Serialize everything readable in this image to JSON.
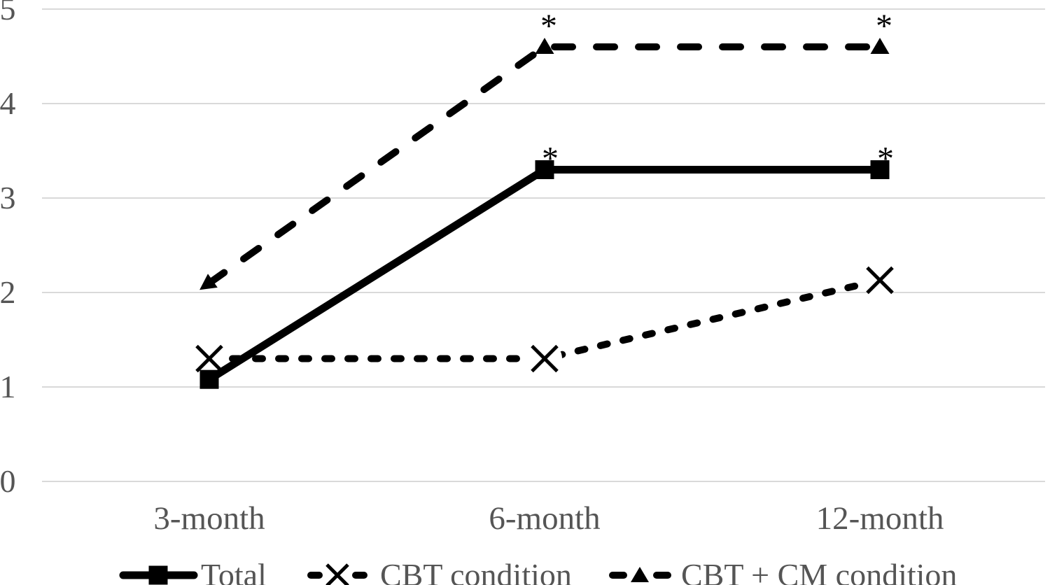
{
  "figure": {
    "background": "#ffffff",
    "text_color": "#555555",
    "line_color": "#000000",
    "grid_color": "#d9d9d9"
  },
  "chart_data": {
    "type": "line",
    "title": "",
    "xlabel": "",
    "ylabel": "",
    "categories": [
      "3-month",
      "6-month",
      "12-month"
    ],
    "yticks": [
      "0",
      "1",
      "2",
      "3",
      "4",
      "5"
    ],
    "ylim": [
      0,
      5
    ],
    "grid": "horizontal",
    "legend_position": "bottom",
    "series": [
      {
        "name": "Total",
        "marker": "square",
        "line_style": "solid",
        "values": [
          1.08,
          3.3,
          3.3
        ],
        "annotations": [
          "",
          "*",
          "*"
        ]
      },
      {
        "name": "CBT condition",
        "marker": "x",
        "line_style": "dashed-short",
        "values": [
          1.3,
          1.3,
          2.13
        ],
        "annotations": [
          "",
          "",
          ""
        ]
      },
      {
        "name": "CBT + CM condition",
        "marker": "triangle",
        "line_style": "dashed-long",
        "values": [
          2.1,
          4.6,
          4.6
        ],
        "annotations": [
          "",
          "*",
          "*"
        ],
        "first_point_marker": "arrow"
      }
    ]
  }
}
